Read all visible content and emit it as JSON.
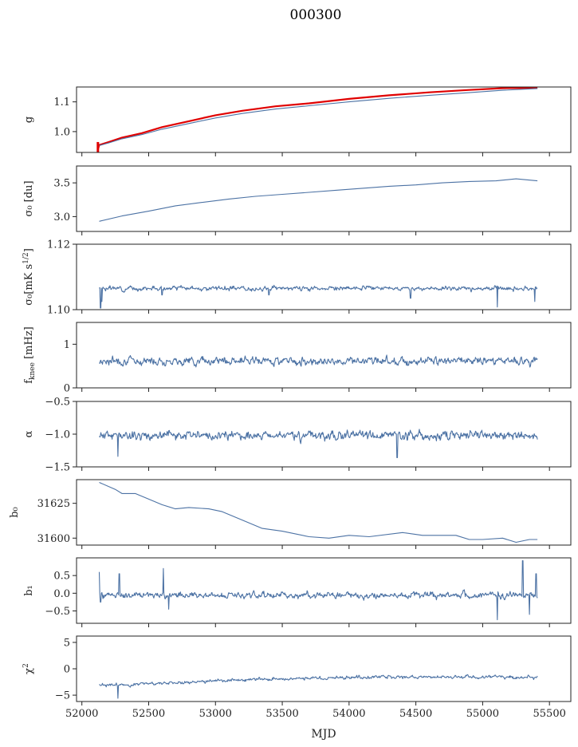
{
  "title": "000300",
  "colors": {
    "series": "#4c72a4",
    "reference": "#e00000"
  },
  "chart_data": {
    "type": "line",
    "title": "000300",
    "xlabel": "MJD",
    "xlim": [
      51960,
      55660
    ],
    "xticks": [
      52000,
      52500,
      53000,
      53500,
      54000,
      54500,
      55000,
      55500
    ],
    "x_tick_labels": [
      "52000",
      "52500",
      "53000",
      "53500",
      "54000",
      "54500",
      "55000",
      "55500"
    ],
    "x_start": 52130,
    "x_end": 55410,
    "panels": [
      {
        "id": "g",
        "ylabel": "g",
        "ylim": [
          0.93,
          1.15
        ],
        "yticks": [
          1.0,
          1.1
        ],
        "ytick_labels": [
          "1.0",
          "1.1"
        ],
        "series": [
          {
            "color": "#e00000",
            "width": 2.2,
            "points": [
              [
                52120,
                0.94
              ],
              [
                52130,
                0.955
              ],
              [
                52200,
                0.965
              ],
              [
                52300,
                0.98
              ],
              [
                52450,
                0.995
              ],
              [
                52600,
                1.015
              ],
              [
                52800,
                1.035
              ],
              [
                53000,
                1.055
              ],
              [
                53200,
                1.07
              ],
              [
                53450,
                1.085
              ],
              [
                53700,
                1.095
              ],
              [
                54000,
                1.11
              ],
              [
                54300,
                1.122
              ],
              [
                54600,
                1.132
              ],
              [
                54900,
                1.14
              ],
              [
                55150,
                1.146
              ],
              [
                55410,
                1.147
              ]
            ]
          },
          {
            "color": "#4c72a4",
            "width": 1.1,
            "points": [
              [
                52130,
                0.953
              ],
              [
                52200,
                0.962
              ],
              [
                52300,
                0.976
              ],
              [
                52450,
                0.99
              ],
              [
                52600,
                1.008
              ],
              [
                52800,
                1.027
              ],
              [
                53000,
                1.046
              ],
              [
                53200,
                1.061
              ],
              [
                53450,
                1.076
              ],
              [
                53700,
                1.087
              ],
              [
                54000,
                1.1
              ],
              [
                54300,
                1.112
              ],
              [
                54600,
                1.122
              ],
              [
                54900,
                1.131
              ],
              [
                55150,
                1.139
              ],
              [
                55410,
                1.145
              ]
            ]
          }
        ]
      },
      {
        "id": "sigma0_du",
        "ylabel": "σ₀ [du]",
        "ylim": [
          2.78,
          3.75
        ],
        "yticks": [
          3.0,
          3.5
        ],
        "ytick_labels": [
          "3.0",
          "3.5"
        ],
        "series": [
          {
            "color": "#4c72a4",
            "width": 1.1,
            "points": [
              [
                52130,
                2.93
              ],
              [
                52300,
                3.01
              ],
              [
                52500,
                3.08
              ],
              [
                52700,
                3.16
              ],
              [
                52900,
                3.21
              ],
              [
                53100,
                3.26
              ],
              [
                53300,
                3.3
              ],
              [
                53500,
                3.33
              ],
              [
                53700,
                3.36
              ],
              [
                53900,
                3.39
              ],
              [
                54100,
                3.42
              ],
              [
                54300,
                3.45
              ],
              [
                54500,
                3.47
              ],
              [
                54700,
                3.5
              ],
              [
                54900,
                3.52
              ],
              [
                55100,
                3.53
              ],
              [
                55250,
                3.56
              ],
              [
                55410,
                3.53
              ]
            ]
          }
        ]
      },
      {
        "id": "sigma0_mk",
        "ylabel": "σ₀[mK s^1/2]",
        "ylim": [
          1.1,
          1.12
        ],
        "yticks": [
          1.1,
          1.12
        ],
        "ytick_labels": [
          "1.10",
          "1.12"
        ],
        "noise": {
          "base": 1.1065,
          "amp": 0.0012,
          "seed": 3,
          "dips": [
            [
              52140,
              1.1005
            ],
            [
              52150,
              1.1025
            ],
            [
              52600,
              1.1045
            ],
            [
              53400,
              1.1045
            ],
            [
              54460,
              1.1035
            ],
            [
              55110,
              1.1008
            ],
            [
              55390,
              1.1025
            ]
          ]
        },
        "series": [
          {
            "color": "#4c72a4",
            "width": 1.1,
            "generated": true
          }
        ]
      },
      {
        "id": "fknee",
        "ylabel": "f_knee [mHz]",
        "ylim": [
          0,
          1.5
        ],
        "yticks": [
          0,
          1
        ],
        "ytick_labels": [
          "0",
          "1"
        ],
        "noise": {
          "base": 0.62,
          "amp": 0.16,
          "seed": 7,
          "dips": []
        },
        "series": [
          {
            "color": "#4c72a4",
            "width": 1.1,
            "generated": true
          }
        ]
      },
      {
        "id": "alpha",
        "ylabel": "α",
        "ylim": [
          -1.5,
          -0.5
        ],
        "yticks": [
          -1.5,
          -1.0,
          -0.5
        ],
        "ytick_labels": [
          "−1.5",
          "−1.0",
          "−0.5"
        ],
        "noise": {
          "base": -1.02,
          "amp": 0.12,
          "seed": 11,
          "dips": [
            [
              54360,
              -1.36
            ],
            [
              52270,
              -1.34
            ]
          ]
        },
        "series": [
          {
            "color": "#4c72a4",
            "width": 1.1,
            "generated": true
          }
        ]
      },
      {
        "id": "b0",
        "ylabel": "b₀",
        "ylim": [
          31595,
          31642
        ],
        "yticks": [
          31600,
          31625
        ],
        "ytick_labels": [
          "31600",
          "31625"
        ],
        "series": [
          {
            "color": "#4c72a4",
            "width": 1.1,
            "points": [
              [
                52130,
                31640
              ],
              [
                52250,
                31635
              ],
              [
                52300,
                31632
              ],
              [
                52400,
                31632
              ],
              [
                52500,
                31628
              ],
              [
                52600,
                31624
              ],
              [
                52700,
                31621
              ],
              [
                52800,
                31622
              ],
              [
                52950,
                31621
              ],
              [
                53050,
                31619
              ],
              [
                53200,
                31613
              ],
              [
                53350,
                31607
              ],
              [
                53500,
                31605
              ],
              [
                53700,
                31601
              ],
              [
                53850,
                31600
              ],
              [
                54000,
                31602
              ],
              [
                54150,
                31601
              ],
              [
                54400,
                31604
              ],
              [
                54550,
                31602
              ],
              [
                54800,
                31602
              ],
              [
                54900,
                31599
              ],
              [
                55000,
                31599
              ],
              [
                55150,
                31600
              ],
              [
                55250,
                31597
              ],
              [
                55350,
                31599
              ],
              [
                55410,
                31599
              ]
            ]
          }
        ]
      },
      {
        "id": "b1",
        "ylabel": "b₁",
        "ylim": [
          -0.85,
          1.0
        ],
        "yticks": [
          -0.5,
          0.0,
          0.5
        ],
        "ytick_labels": [
          "−0.5",
          "0.0",
          "0.5"
        ],
        "noise": {
          "base": -0.05,
          "amp": 0.16,
          "seed": 19,
          "spikes": [
            [
              52130,
              0.6
            ],
            [
              52140,
              -0.25
            ],
            [
              52280,
              0.55
            ],
            [
              52610,
              0.7
            ],
            [
              52650,
              -0.45
            ],
            [
              55110,
              -0.75
            ],
            [
              55300,
              0.92
            ],
            [
              55350,
              -0.6
            ],
            [
              55400,
              0.55
            ]
          ]
        },
        "series": [
          {
            "color": "#4c72a4",
            "width": 1.1,
            "generated": true
          }
        ]
      },
      {
        "id": "chi2",
        "ylabel": "χ²",
        "ylim": [
          -6.2,
          6.2
        ],
        "yticks": [
          -5,
          0,
          5
        ],
        "ytick_labels": [
          "−5",
          "0",
          "5"
        ],
        "noise": {
          "trend": [
            [
              52130,
              -3.2
            ],
            [
              52600,
              -2.7
            ],
            [
              53100,
              -2.2
            ],
            [
              53600,
              -1.8
            ],
            [
              54200,
              -1.6
            ],
            [
              54800,
              -1.6
            ],
            [
              55410,
              -1.6
            ]
          ],
          "amp": 0.55,
          "seed": 23,
          "spikes": [
            [
              52270,
              -5.6
            ],
            [
              53300,
              -2.2
            ]
          ]
        },
        "series": [
          {
            "color": "#4c72a4",
            "width": 1.1,
            "generated": true
          }
        ]
      }
    ]
  }
}
